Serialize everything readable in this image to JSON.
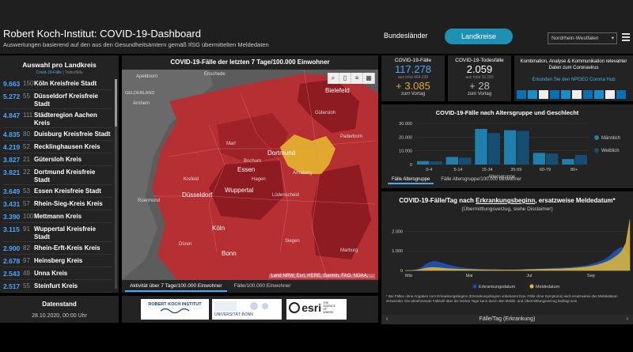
{
  "header": {
    "title": "Robert Koch-Institut: COVID-19-Dashboard",
    "subtitle": "Auswertungen basierend auf den aus den Gesundheitsämtern gemäß IfSG übermittelten Meldedaten",
    "nav_bundeslaender": "Bundesländer",
    "nav_landkreise": "Landkreise",
    "region_selected": "Nordrhein-Westfalen"
  },
  "list": {
    "title": "Auswahl pro Landkreis",
    "sub_active": "Covid-19-Fälle",
    "sub_other": "Todesfälle",
    "items": [
      {
        "value": "9.663",
        "rank": "150",
        "name": "Köln Kreisfreie Stadt"
      },
      {
        "value": "5.272",
        "rank": "55",
        "name": "Düsseldorf Kreisfreie Stadt"
      },
      {
        "value": "4.847",
        "rank": "111",
        "name": "Städteregion Aachen Kreis"
      },
      {
        "value": "4.835",
        "rank": "80",
        "name": "Duisburg Kreisfreie Stadt"
      },
      {
        "value": "4.219",
        "rank": "52",
        "name": "Recklinghausen Kreis"
      },
      {
        "value": "3.827",
        "rank": "21",
        "name": "Gütersloh Kreis"
      },
      {
        "value": "3.821",
        "rank": "22",
        "name": "Dortmund Kreisfreie Stadt"
      },
      {
        "value": "3.649",
        "rank": "53",
        "name": "Essen Kreisfreie Stadt"
      },
      {
        "value": "3.431",
        "rank": "57",
        "name": "Rhein-Sieg-Kreis Kreis"
      },
      {
        "value": "3.390",
        "rank": "100",
        "name": "Mettmann Kreis"
      },
      {
        "value": "3.115",
        "rank": "91",
        "name": "Wuppertal Kreisfreie Stadt"
      },
      {
        "value": "2.900",
        "rank": "82",
        "name": "Rhein-Erft-Kreis Kreis"
      },
      {
        "value": "2.678",
        "rank": "97",
        "name": "Heinsberg Kreis"
      },
      {
        "value": "2.543",
        "rank": "49",
        "name": "Unna Kreis"
      },
      {
        "value": "2.517",
        "rank": "55",
        "name": "Steinfurt Kreis"
      }
    ]
  },
  "date": {
    "title": "Datenstand",
    "value": "28.10.2020, 00:00 Uhr"
  },
  "map": {
    "title": "COVID-19-Fälle der letzten 7 Tage/100.000 Einwohner",
    "attribution": "Land NRW, Esri, HERE, Garmin, FAO, NOAA, ...",
    "tab_active": "Aktivität über 7 Tage/100.000 Einwohner",
    "tab_other": "Fälle/100.000 Einwohner",
    "labels": {
      "apeldoorn": "Apeldoorn",
      "enschede": "Enschede",
      "gelderland": "GELDERLAND",
      "arnhem": "Arnhem",
      "bielefeld": "Bielefeld",
      "guetersloh": "Gütersloh",
      "paderborn": "Paderborn",
      "marl": "Marl",
      "bochum": "Bochum",
      "essen": "Essen",
      "dortmund": "Dortmund",
      "arnsberg": "Arnsberg",
      "krefeld": "Krefeld",
      "duesseldorf": "Düsseldorf",
      "wuppertal": "Wuppertal",
      "hagen": "Hagen",
      "luedenscheid": "Lüdenscheid",
      "roermond": "Roermond",
      "koeln": "Köln",
      "bonn": "Bonn",
      "dueren": "Düren",
      "siegen": "Siegen",
      "marburg": "Marburg"
    },
    "colors": {
      "base": "#b52f33",
      "dark": "#8e1a22",
      "highlight": "#e0a82c",
      "bg": "#5a5a5a"
    }
  },
  "logos": {
    "rki": "ROBERT KOCH INSTITUT",
    "bonn": "UNIVERSITÄT BONN",
    "esri": "esri",
    "esri_tag": "THE SCIENCE OF WHERE"
  },
  "kpi": {
    "cases": {
      "label": "COVID-19-Fälle",
      "value": "117.278",
      "sub": "aus total 464.239",
      "delta": "+ 3.085",
      "foot": "zum Vortag"
    },
    "deaths": {
      "label": "COVID-19-Todesfälle",
      "value": "2.059",
      "sub": "aus total 10.183",
      "delta": "+ 28",
      "foot": "zum Vortag"
    }
  },
  "info": {
    "text": "Kombination, Analyse & Kommunikation relevanter Daten zum Coronavirus",
    "link": "Erkunden Sie den NPGEO Corona Hub"
  },
  "age_chart": {
    "title": "COVID-19-Fälle nach Altersgruppe und Geschlecht",
    "tab_active": "Fälle Altersgruppe",
    "tab_other": "Fälle Altersgruppe/100.000 Einwohner"
  },
  "daily_chart": {
    "title_part1": "COVID-19-Fälle/Tag nach ",
    "title_part2": "Erkrankungsbeginn",
    "title_part3": ", ersatzweise Meldedatum*",
    "subtitle": "(Übermittlungsverzug, siehe Disclaimer)",
    "footnote": "* Bei Fällen ohne Angaben zum Erkrankungsbeginn (Erkrankungsbeginn unbekannt bzw. Fälle ohne Symptome) wird ersatzweise das Meldedatum verwendet. Die abnehmende Fallzahl über die letzten Tage kann durch den Melde- und Übermittlungsverzug bedingt sein.",
    "bottom_tab": "Fälle/Tag (Erkrankung)"
  },
  "chart_data": [
    {
      "type": "bar",
      "title": "COVID-19-Fälle nach Altersgruppe und Geschlecht",
      "xlabel": "Altersgruppe",
      "ylabel": "",
      "ylim": [
        0,
        30000
      ],
      "yticks": [
        "0",
        "10.000",
        "20.000",
        "30.000"
      ],
      "categories": [
        "0-4",
        "5-14",
        "15-34",
        "35-59",
        "60-79",
        "80+"
      ],
      "x_tick_labels": [
        "0-4",
        "",
        "5-14",
        "",
        "15-34",
        "",
        "35-59",
        "",
        "60-79",
        "",
        "80+",
        ""
      ],
      "legend_position": "right",
      "series": [
        {
          "name": "Männlich",
          "color": "#1f7fae",
          "values": [
            2500,
            5500,
            26000,
            25000,
            8500,
            4000
          ]
        },
        {
          "name": "Weiblich",
          "color": "#164e72",
          "values": [
            2300,
            5000,
            23000,
            24500,
            8000,
            7000
          ]
        }
      ]
    },
    {
      "type": "area",
      "title": "COVID-19-Fälle/Tag nach Erkrankungsbeginn, ersatzweise Meldedatum*",
      "xlabel": "",
      "ylabel": "",
      "ylim": [
        0,
        2500
      ],
      "yticks": [
        "0",
        "1.000",
        "2.000"
      ],
      "x_tick_labels": [
        "Mär",
        "Mai",
        "Jul",
        "Sep"
      ],
      "legend_position": "bottom",
      "series": [
        {
          "name": "Erkrankungsdatum",
          "color": "#1f4fa8",
          "values": [
            0,
            5,
            20,
            60,
            150,
            300,
            420,
            480,
            460,
            400,
            340,
            280,
            230,
            190,
            160,
            130,
            110,
            95,
            80,
            70,
            60,
            55,
            50,
            45,
            40,
            38,
            36,
            35,
            40,
            45,
            60,
            70,
            80,
            90,
            95,
            100,
            110,
            120,
            130,
            140,
            150,
            160,
            180,
            200,
            220,
            250,
            300,
            360,
            420,
            500,
            600,
            750,
            950,
            1100,
            1200,
            1000,
            600
          ]
        },
        {
          "name": "Meldedatum",
          "color": "#e2b93b",
          "values": [
            0,
            2,
            10,
            30,
            70,
            120,
            150,
            160,
            150,
            130,
            110,
            95,
            85,
            75,
            65,
            60,
            55,
            50,
            45,
            42,
            40,
            38,
            36,
            35,
            34,
            33,
            32,
            32,
            34,
            38,
            45,
            52,
            58,
            62,
            66,
            70,
            75,
            80,
            85,
            90,
            100,
            110,
            125,
            140,
            160,
            180,
            210,
            250,
            300,
            360,
            430,
            520,
            650,
            800,
            1000,
            1400,
            2600
          ]
        }
      ]
    }
  ]
}
